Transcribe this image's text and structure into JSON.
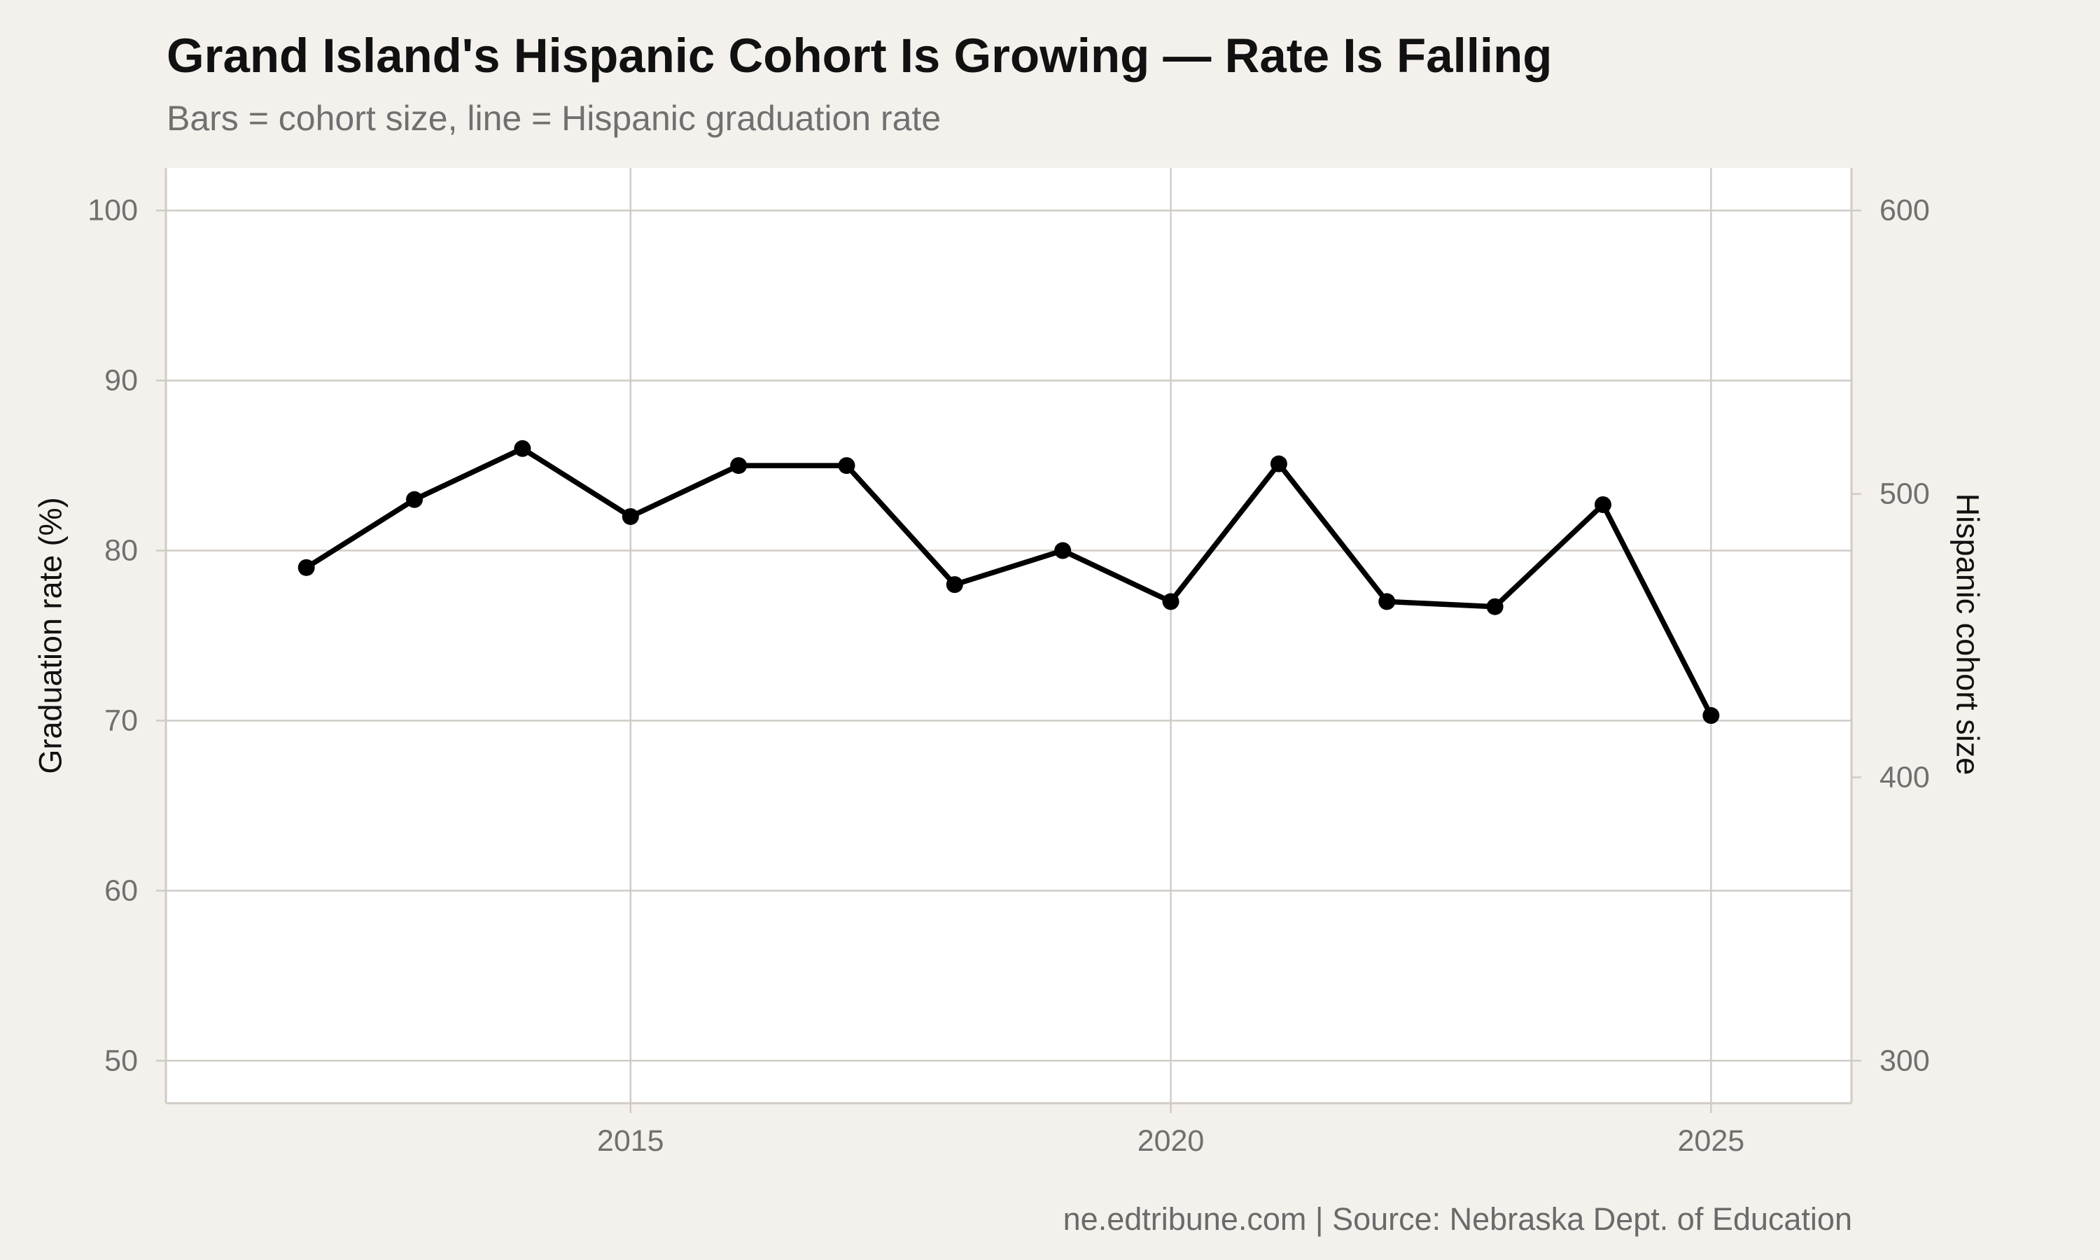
{
  "title": "Grand Island's Hispanic Cohort Is Growing — Rate Is Falling",
  "subtitle": "Bars = cohort size, line = Hispanic graduation rate",
  "caption": "ne.edtribune.com | Source: Nebraska Dept. of Education",
  "colors": {
    "background": "#f4f1ec",
    "panel": "#ffffff",
    "grid": "#d0ccc5",
    "line": "#000000"
  },
  "chart_data": {
    "type": "line",
    "x": [
      2012,
      2013,
      2014,
      2015,
      2016,
      2017,
      2018,
      2019,
      2020,
      2021,
      2022,
      2023,
      2024,
      2025
    ],
    "series": [
      {
        "values": [
          79.0,
          83.0,
          86.0,
          82.0,
          85.0,
          85.0,
          78.0,
          80.0,
          77.0,
          85.1,
          77.0,
          76.7,
          82.7,
          70.3
        ]
      }
    ],
    "bars": [],
    "xlabel": "",
    "ylabel": "Graduation rate (%)",
    "y2label": "Hispanic cohort size",
    "xlim": [
      2010.7,
      2026.3
    ],
    "ylim": [
      47.5,
      102.5
    ],
    "y2lim": [
      285,
      615
    ],
    "xticks": [
      2015,
      2020,
      2025
    ],
    "yticks": [
      50,
      60,
      70,
      80,
      90,
      100
    ],
    "y2ticks": [
      300,
      400,
      500,
      600
    ],
    "grid": true,
    "legend": "none"
  }
}
